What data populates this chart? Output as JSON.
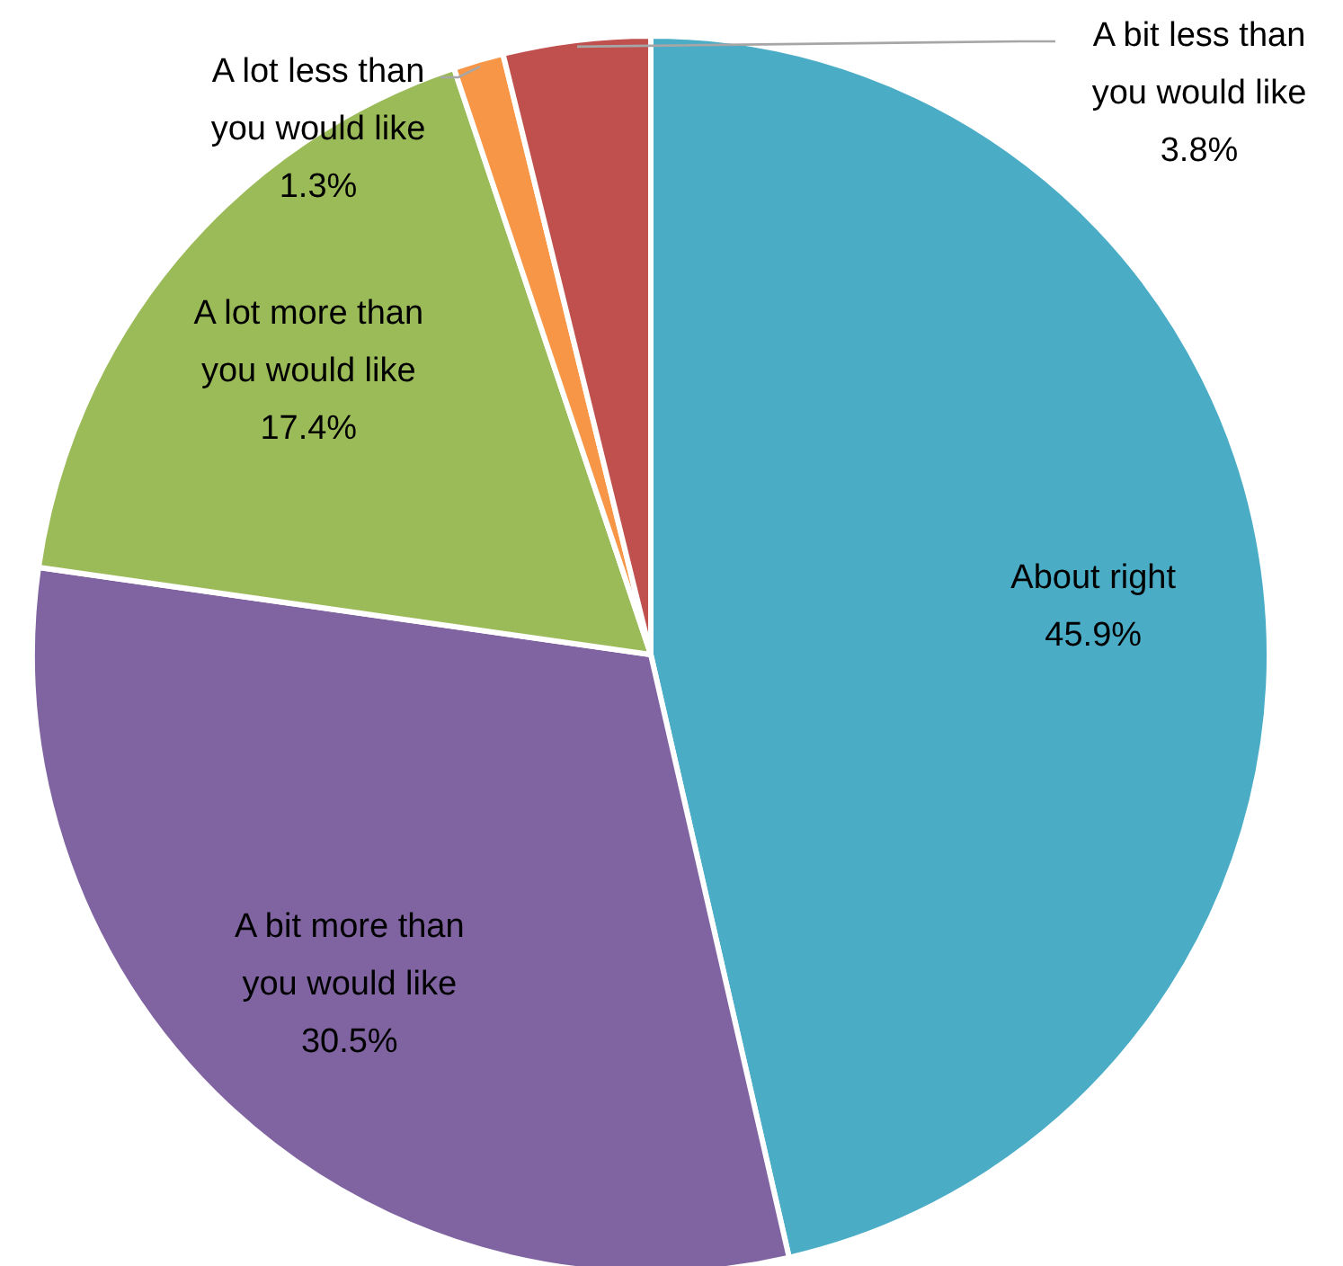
{
  "chart_data": {
    "type": "pie",
    "categories": [
      "About right",
      "A bit more than you would like",
      "A lot more than you would like",
      "A lot less than you would like",
      "A bit less than you would like"
    ],
    "values": [
      45.9,
      30.5,
      17.4,
      1.3,
      3.8
    ],
    "value_labels": [
      "45.9%",
      "30.5%",
      "17.4%",
      "1.3%",
      "3.8%"
    ],
    "colors": [
      "#4bacc6",
      "#8064a2",
      "#9bbb59",
      "#f79646",
      "#c0504d"
    ]
  }
}
